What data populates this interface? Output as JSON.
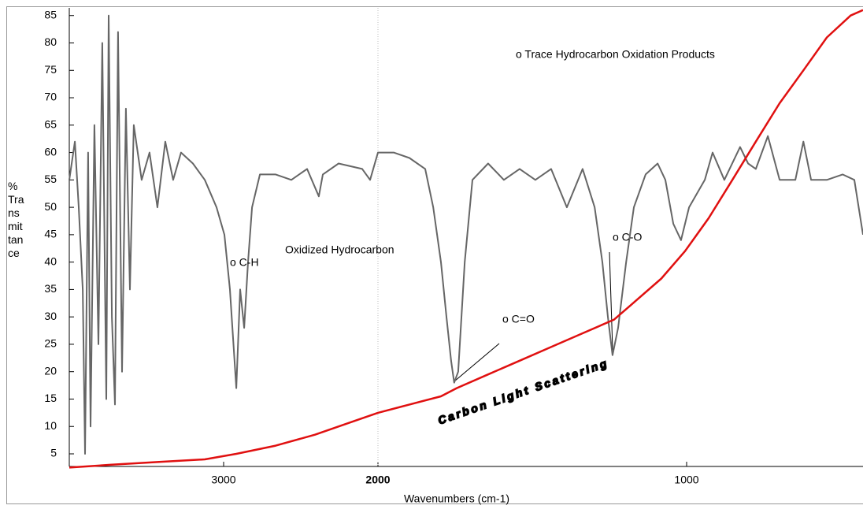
{
  "chart_data": {
    "type": "line",
    "xlabel": "Wavenumbers (cm-1)",
    "ylabel": "% Transmittance",
    "xlim": [
      4000,
      429
    ],
    "xticks": [
      3000,
      2000,
      1000
    ],
    "ylim": [
      2.7,
      86.4
    ],
    "yticks": [
      5,
      10,
      15,
      20,
      25,
      30,
      35,
      40,
      45,
      50,
      55,
      60,
      65,
      70,
      75,
      80,
      85
    ],
    "annotations": [
      "o Trace Hydrocarbon Oxidation Products",
      "o C-H",
      "Oxidized Hydrocarbon",
      "o C=O",
      "o C-O",
      "Carbon Light Scattering"
    ],
    "series": [
      {
        "color": "#666666",
        "x": [
          4000,
          3964,
          3939,
          3913,
          3898,
          3878,
          3862,
          3837,
          3811,
          3786,
          3760,
          3745,
          3724,
          3704,
          3684,
          3658,
          3633,
          3607,
          3582,
          3531,
          3480,
          3429,
          3378,
          3327,
          3276,
          3199,
          3122,
          3046,
          2995,
          2959,
          2918,
          2893,
          2867,
          2842,
          2816,
          2765,
          2663,
          2561,
          2459,
          2383,
          2357,
          2255,
          2102,
          2051,
          2000,
          1949,
          1898,
          1847,
          1821,
          1796,
          1778,
          1763,
          1753,
          1740,
          1719,
          1694,
          1643,
          1592,
          1541,
          1490,
          1439,
          1388,
          1337,
          1298,
          1273,
          1255,
          1240,
          1222,
          1196,
          1171,
          1133,
          1094,
          1069,
          1043,
          1018,
          992,
          941,
          916,
          878,
          827,
          801,
          776,
          737,
          699,
          648,
          622,
          597,
          546,
          495,
          457,
          429
        ],
        "values": [
          55,
          62,
          50,
          35,
          5,
          60,
          10,
          65,
          25,
          80,
          15,
          85,
          30,
          14,
          82,
          20,
          68,
          35,
          65,
          55,
          60,
          50,
          62,
          55,
          60,
          58,
          55,
          50,
          45,
          35,
          17,
          35,
          28,
          40,
          50,
          56,
          56,
          55,
          57,
          52,
          56,
          58,
          57,
          55,
          60,
          60,
          59,
          57,
          50,
          40,
          30,
          22,
          18,
          20,
          40,
          55,
          58,
          55,
          57,
          55,
          57,
          50,
          57,
          50,
          40,
          30,
          23,
          28,
          40,
          50,
          56,
          58,
          55,
          47,
          44,
          50,
          55,
          60,
          55,
          61,
          58,
          57,
          63,
          55,
          55,
          62,
          55,
          55,
          56,
          55,
          45
        ]
      },
      {
        "color": "#e01010",
        "x": [
          4000,
          3735,
          3429,
          3122,
          2918,
          2663,
          2408,
          2153,
          2000,
          1898,
          1796,
          1745,
          1643,
          1541,
          1439,
          1337,
          1235,
          1184,
          1082,
          1005,
          929,
          852,
          776,
          699,
          622,
          546,
          469,
          429
        ],
        "values": [
          2.5,
          3,
          3.5,
          4,
          5,
          6.5,
          8.5,
          11,
          12.5,
          14,
          15.5,
          17,
          19.5,
          22,
          24.5,
          27,
          29.5,
          32,
          37,
          42,
          48,
          55,
          62,
          69,
          75,
          81,
          85,
          86
        ]
      }
    ]
  }
}
